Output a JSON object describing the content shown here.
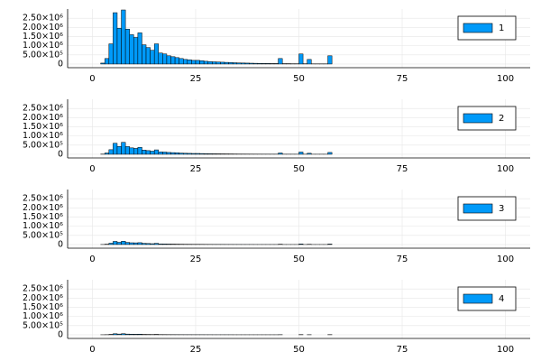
{
  "chart_data": [
    {
      "type": "histogram",
      "bins": [
        0,
        1,
        2,
        3,
        4,
        5,
        6,
        7,
        8,
        9,
        10,
        11,
        12,
        13,
        14,
        15,
        16,
        17,
        18,
        19,
        20,
        21,
        22,
        23,
        24,
        25,
        26,
        27,
        28,
        29,
        30,
        31,
        32,
        33,
        34,
        35,
        36,
        37,
        38,
        39,
        40,
        41,
        42,
        43,
        44,
        45,
        46,
        47,
        48,
        49,
        50,
        51,
        52,
        53,
        54,
        55,
        56,
        57,
        58,
        59,
        60,
        61,
        62,
        63,
        64,
        65,
        66,
        67,
        68,
        69,
        70,
        71,
        72,
        73,
        74,
        75,
        76,
        77,
        78,
        79,
        80,
        81,
        82,
        83,
        84,
        85,
        86,
        87,
        88,
        89,
        90,
        91,
        92,
        93,
        94,
        95,
        96,
        97,
        98,
        99,
        100
      ],
      "series": [
        {
          "name": "1",
          "color": "#009af9",
          "values": [
            0,
            0,
            50000,
            300000,
            1100000,
            2800000,
            1950000,
            2950000,
            1900000,
            1600000,
            1450000,
            1700000,
            1050000,
            900000,
            750000,
            1100000,
            600000,
            550000,
            450000,
            400000,
            350000,
            300000,
            250000,
            230000,
            200000,
            200000,
            180000,
            150000,
            130000,
            120000,
            110000,
            100000,
            90000,
            80000,
            70000,
            60000,
            55000,
            50000,
            45000,
            40000,
            35000,
            30000,
            30000,
            25000,
            25000,
            300000,
            20000,
            20000,
            15000,
            15000,
            550000,
            15000,
            250000,
            10000,
            10000,
            10000,
            10000,
            450000,
            0,
            0,
            0,
            0,
            0,
            0,
            0,
            0,
            0,
            0,
            0,
            0,
            0,
            0,
            0,
            0,
            0,
            0,
            0,
            0,
            0,
            0,
            0,
            0,
            0,
            0,
            0,
            0,
            0,
            0,
            0,
            0,
            0,
            0,
            0,
            0,
            0,
            0,
            0,
            0,
            0,
            0
          ]
        }
      ],
      "xlim": [
        -6,
        106
      ],
      "ylim": [
        -200000,
        3000000
      ],
      "xticks": [
        0,
        25,
        50,
        75,
        100
      ],
      "yticks": [
        0,
        {
          "value": 500000,
          "label": "5.00×10⁵"
        },
        {
          "value": 1000000,
          "label": "1.00×10⁶"
        },
        {
          "value": 1500000,
          "label": "1.50×10⁶"
        },
        {
          "value": 2000000,
          "label": "2.00×10⁶"
        },
        {
          "value": 2500000,
          "label": "2.50×10⁶"
        }
      ],
      "grid": true,
      "legend": "top-right"
    },
    {
      "type": "histogram",
      "bins": [
        0,
        1,
        2,
        3,
        4,
        5,
        6,
        7,
        8,
        9,
        10,
        11,
        12,
        13,
        14,
        15,
        16,
        17,
        18,
        19,
        20,
        21,
        22,
        23,
        24,
        25,
        26,
        27,
        28,
        29,
        30,
        31,
        32,
        33,
        34,
        35,
        36,
        37,
        38,
        39,
        40,
        41,
        42,
        43,
        44,
        45,
        46,
        47,
        48,
        49,
        50,
        51,
        52,
        53,
        54,
        55,
        56,
        57,
        58,
        59,
        60,
        61,
        62,
        63,
        64,
        65,
        66,
        67,
        68,
        69,
        70,
        71,
        72,
        73,
        74,
        75,
        76,
        77,
        78,
        79,
        80,
        81,
        82,
        83,
        84,
        85,
        86,
        87,
        88,
        89,
        90,
        91,
        92,
        93,
        94,
        95,
        96,
        97,
        98,
        99,
        100
      ],
      "series": [
        {
          "name": "2",
          "color": "#009af9",
          "values": [
            0,
            0,
            10000,
            70000,
            250000,
            600000,
            430000,
            650000,
            420000,
            350000,
            320000,
            380000,
            230000,
            200000,
            170000,
            240000,
            130000,
            120000,
            100000,
            90000,
            80000,
            65000,
            55000,
            50000,
            45000,
            45000,
            40000,
            33000,
            29000,
            26000,
            24000,
            22000,
            20000,
            18000,
            15000,
            13000,
            12000,
            11000,
            10000,
            9000,
            8000,
            7000,
            7000,
            6000,
            6000,
            70000,
            5000,
            5000,
            4000,
            4000,
            120000,
            4000,
            55000,
            3000,
            3000,
            3000,
            3000,
            100000,
            0,
            0,
            0,
            0,
            0,
            0,
            0,
            0,
            0,
            0,
            0,
            0,
            0,
            0,
            0,
            0,
            0,
            0,
            0,
            0,
            0,
            0,
            0,
            0,
            0,
            0,
            0,
            0,
            0,
            0,
            0,
            0,
            0,
            0,
            0,
            0,
            0,
            0,
            0,
            0,
            0,
            0
          ]
        }
      ],
      "xlim": [
        -6,
        106
      ],
      "ylim": [
        -200000,
        3000000
      ],
      "xticks": [
        0,
        25,
        50,
        75,
        100
      ],
      "yticks": [
        0,
        {
          "value": 500000,
          "label": "5.00×10⁵"
        },
        {
          "value": 1000000,
          "label": "1.00×10⁶"
        },
        {
          "value": 1500000,
          "label": "1.50×10⁶"
        },
        {
          "value": 2000000,
          "label": "2.00×10⁶"
        },
        {
          "value": 2500000,
          "label": "2.50×10⁶"
        }
      ],
      "grid": true,
      "legend": "top-right"
    },
    {
      "type": "histogram",
      "bins": [
        0,
        1,
        2,
        3,
        4,
        5,
        6,
        7,
        8,
        9,
        10,
        11,
        12,
        13,
        14,
        15,
        16,
        17,
        18,
        19,
        20,
        21,
        22,
        23,
        24,
        25,
        26,
        27,
        28,
        29,
        30,
        31,
        32,
        33,
        34,
        35,
        36,
        37,
        38,
        39,
        40,
        41,
        42,
        43,
        44,
        45,
        46,
        47,
        48,
        49,
        50,
        51,
        52,
        53,
        54,
        55,
        56,
        57,
        58,
        59,
        60,
        61,
        62,
        63,
        64,
        65,
        66,
        67,
        68,
        69,
        70,
        71,
        72,
        73,
        74,
        75,
        76,
        77,
        78,
        79,
        80,
        81,
        82,
        83,
        84,
        85,
        86,
        87,
        88,
        89,
        90,
        91,
        92,
        93,
        94,
        95,
        96,
        97,
        98,
        99,
        100
      ],
      "series": [
        {
          "name": "3",
          "color": "#009af9",
          "values": [
            0,
            0,
            3000,
            20000,
            70000,
            170000,
            120000,
            180000,
            115000,
            95000,
            90000,
            100000,
            65000,
            55000,
            45000,
            65000,
            35000,
            33000,
            27000,
            24000,
            21000,
            18000,
            15000,
            14000,
            12000,
            12000,
            11000,
            9000,
            8000,
            7000,
            7000,
            6000,
            5000,
            5000,
            4000,
            4000,
            3000,
            3000,
            3000,
            2000,
            2000,
            2000,
            2000,
            2000,
            2000,
            18000,
            1000,
            1000,
            1000,
            1000,
            33000,
            1000,
            15000,
            1000,
            1000,
            1000,
            1000,
            27000,
            0,
            0,
            0,
            0,
            0,
            0,
            0,
            0,
            0,
            0,
            0,
            0,
            0,
            0,
            0,
            0,
            0,
            0,
            0,
            0,
            0,
            0,
            0,
            0,
            0,
            0,
            0,
            0,
            0,
            0,
            0,
            0,
            0,
            0,
            0,
            0,
            0,
            0,
            0,
            0,
            0,
            0
          ]
        }
      ],
      "xlim": [
        -6,
        106
      ],
      "ylim": [
        -200000,
        3000000
      ],
      "xticks": [
        0,
        25,
        50,
        75,
        100
      ],
      "yticks": [
        0,
        {
          "value": 500000,
          "label": "5.00×10⁵"
        },
        {
          "value": 1000000,
          "label": "1.00×10⁶"
        },
        {
          "value": 1500000,
          "label": "1.50×10⁶"
        },
        {
          "value": 2000000,
          "label": "2.00×10⁶"
        },
        {
          "value": 2500000,
          "label": "2.50×10⁶"
        }
      ],
      "grid": true,
      "legend": "top-right"
    },
    {
      "type": "histogram",
      "bins": [
        0,
        1,
        2,
        3,
        4,
        5,
        6,
        7,
        8,
        9,
        10,
        11,
        12,
        13,
        14,
        15,
        16,
        17,
        18,
        19,
        20,
        21,
        22,
        23,
        24,
        25,
        26,
        27,
        28,
        29,
        30,
        31,
        32,
        33,
        34,
        35,
        36,
        37,
        38,
        39,
        40,
        41,
        42,
        43,
        44,
        45,
        46,
        47,
        48,
        49,
        50,
        51,
        52,
        53,
        54,
        55,
        56,
        57,
        58,
        59,
        60,
        61,
        62,
        63,
        64,
        65,
        66,
        67,
        68,
        69,
        70,
        71,
        72,
        73,
        74,
        75,
        76,
        77,
        78,
        79,
        80,
        81,
        82,
        83,
        84,
        85,
        86,
        87,
        88,
        89,
        90,
        91,
        92,
        93,
        94,
        95,
        96,
        97,
        98,
        99,
        100
      ],
      "series": [
        {
          "name": "4",
          "color": "#009af9",
          "values": [
            0,
            0,
            1000,
            6000,
            22000,
            56000,
            39000,
            59000,
            38000,
            32000,
            29000,
            34000,
            21000,
            18000,
            15000,
            22000,
            12000,
            11000,
            9000,
            8000,
            7000,
            6000,
            5000,
            5000,
            4000,
            4000,
            4000,
            3000,
            3000,
            2000,
            2000,
            2000,
            2000,
            2000,
            1000,
            1000,
            1000,
            1000,
            1000,
            1000,
            1000,
            1000,
            1000,
            1000,
            1000,
            6000,
            0,
            0,
            0,
            0,
            11000,
            0,
            5000,
            0,
            0,
            0,
            0,
            9000,
            0,
            0,
            0,
            0,
            0,
            0,
            0,
            0,
            0,
            0,
            0,
            0,
            0,
            0,
            0,
            0,
            0,
            0,
            0,
            0,
            0,
            0,
            0,
            0,
            0,
            0,
            0,
            0,
            0,
            0,
            0,
            0,
            0,
            0,
            0,
            0,
            0,
            0,
            0,
            0,
            0,
            0,
            0,
            0
          ]
        }
      ],
      "xlim": [
        -6,
        106
      ],
      "ylim": [
        -200000,
        3000000
      ],
      "xticks": [
        0,
        25,
        50,
        75,
        100
      ],
      "yticks": [
        0,
        {
          "value": 500000,
          "label": "5.00×10⁵"
        },
        {
          "value": 1000000,
          "label": "1.00×10⁶"
        },
        {
          "value": 1500000,
          "label": "1.50×10⁶"
        },
        {
          "value": 2000000,
          "label": "2.00×10⁶"
        },
        {
          "value": 2500000,
          "label": "2.50×10⁶"
        }
      ],
      "grid": true,
      "legend": "top-right"
    }
  ]
}
